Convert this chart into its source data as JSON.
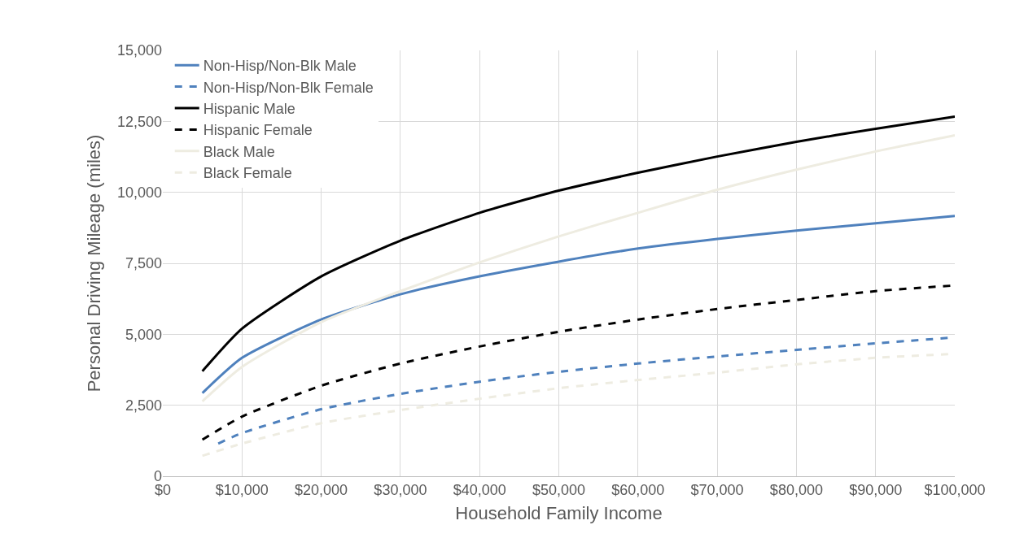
{
  "chart_data": {
    "type": "line",
    "xlabel": "Household Family Income",
    "ylabel": "Personal Driving Mileage (miles)",
    "x": [
      5000,
      10000,
      20000,
      30000,
      40000,
      50000,
      60000,
      70000,
      80000,
      90000,
      100000
    ],
    "xlim": [
      0,
      100000
    ],
    "xticks": [
      {
        "value": 0,
        "label": "$0"
      },
      {
        "value": 10000,
        "label": "$10,000"
      },
      {
        "value": 20000,
        "label": "$20,000"
      },
      {
        "value": 30000,
        "label": "$30,000"
      },
      {
        "value": 40000,
        "label": "$40,000"
      },
      {
        "value": 50000,
        "label": "$50,000"
      },
      {
        "value": 60000,
        "label": "$60,000"
      },
      {
        "value": 70000,
        "label": "$70,000"
      },
      {
        "value": 80000,
        "label": "$80,000"
      },
      {
        "value": 90000,
        "label": "$90,000"
      },
      {
        "value": 100000,
        "label": "$100,000"
      }
    ],
    "ylim": [
      0,
      15000
    ],
    "yticks": [
      0,
      {
        "value": 2500,
        "label": "2,500"
      },
      {
        "value": 5000,
        "label": "5,000"
      },
      {
        "value": 7500,
        "label": "7,500"
      },
      {
        "value": 10000,
        "label": "10,000"
      },
      {
        "value": 12500,
        "label": "12,500"
      },
      {
        "value": 15000,
        "label": "15,000"
      }
    ],
    "grid": true,
    "legend": "top left",
    "marker": "none",
    "series": [
      {
        "name": "Non-Hisp/Non-Blk Male",
        "color": "#4f81bd",
        "line_style": "solid",
        "values": [
          2930,
          4170,
          5520,
          6410,
          7040,
          7560,
          8020,
          8360,
          8650,
          8910,
          9170
        ]
      },
      {
        "name": "Non-Hisp/Non-Blk Female",
        "color": "#4f81bd",
        "line_style": "dashed",
        "x": [
          7000,
          10000,
          20000,
          30000,
          40000,
          50000,
          60000,
          70000,
          80000,
          90000,
          100000
        ],
        "values": [
          1150,
          1520,
          2360,
          2900,
          3330,
          3680,
          3970,
          4220,
          4450,
          4680,
          4890
        ]
      },
      {
        "name": "Hispanic Male",
        "color": "#000000",
        "line_style": "solid",
        "values": [
          3700,
          5200,
          7040,
          8300,
          9280,
          10060,
          10690,
          11260,
          11780,
          12240,
          12670
        ]
      },
      {
        "name": "Hispanic Female",
        "color": "#000000",
        "line_style": "dashed",
        "values": [
          1290,
          2100,
          3190,
          3970,
          4570,
          5090,
          5520,
          5890,
          6210,
          6520,
          6720
        ]
      },
      {
        "name": "Black Male",
        "color": "#eeece1",
        "line_style": "solid",
        "values": [
          2640,
          3850,
          5430,
          6520,
          7530,
          8450,
          9280,
          10090,
          10800,
          11440,
          12010
        ]
      },
      {
        "name": "Black Female",
        "color": "#eeece1",
        "line_style": "dashed",
        "values": [
          720,
          1150,
          1870,
          2330,
          2730,
          3100,
          3390,
          3650,
          3940,
          4170,
          4310
        ]
      }
    ]
  }
}
